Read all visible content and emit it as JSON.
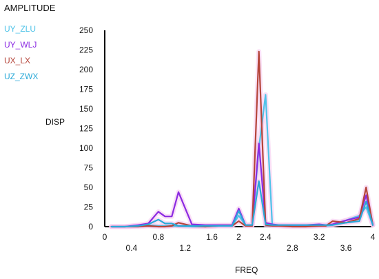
{
  "chart_data": {
    "type": "line",
    "title": "AMPLITUDE",
    "ylabel": "DISP",
    "xlabel": "FREQ",
    "xlim": [
      0,
      4
    ],
    "ylim": [
      0,
      250
    ],
    "x_ticks_lower": [
      "0",
      "0.8",
      "1.6",
      "2",
      "2.4",
      "3.2",
      "4"
    ],
    "x_ticks_upper": [
      "0.4",
      "1.2",
      "2.8",
      "3.6"
    ],
    "x_ticks_lower_values": [
      0,
      0.8,
      1.6,
      2.0,
      2.4,
      3.2,
      4.0
    ],
    "x_ticks_upper_values": [
      0.4,
      1.2,
      2.8,
      3.6
    ],
    "y_ticks": [
      "0",
      "25",
      "50",
      "75",
      "100",
      "125",
      "150",
      "175",
      "200",
      "225",
      "250"
    ],
    "y_tick_values": [
      0,
      25,
      50,
      75,
      100,
      125,
      150,
      175,
      200,
      225,
      250
    ],
    "grid": false,
    "legend_position": "top-left",
    "series": [
      {
        "name": "UY_ZLU",
        "color": "#4fc3e8",
        "x": [
          0.1,
          0.3,
          0.5,
          0.65,
          0.8,
          0.9,
          1.0,
          1.1,
          1.3,
          1.5,
          1.7,
          1.9,
          2.0,
          2.1,
          2.2,
          2.3,
          2.4,
          2.5,
          2.6,
          2.8,
          3.0,
          3.2,
          3.3,
          3.4,
          3.6,
          3.8,
          3.9,
          4.0
        ],
        "y": [
          0,
          0,
          1,
          2,
          1,
          1,
          1,
          1,
          0,
          0,
          1,
          1,
          14,
          2,
          2,
          100,
          168,
          2,
          1,
          1,
          1,
          1,
          1,
          2,
          8,
          14,
          25,
          2
        ]
      },
      {
        "name": "UY_WLJ",
        "color": "#8b2be2",
        "x": [
          0.1,
          0.3,
          0.5,
          0.65,
          0.8,
          0.9,
          1.0,
          1.1,
          1.3,
          1.5,
          1.7,
          1.9,
          2.0,
          2.1,
          2.2,
          2.3,
          2.4,
          2.5,
          2.6,
          2.8,
          3.0,
          3.2,
          3.3,
          3.4,
          3.6,
          3.8,
          3.9,
          4.0
        ],
        "y": [
          0,
          0,
          2,
          4,
          19,
          13,
          13,
          44,
          3,
          2,
          2,
          2,
          23,
          2,
          2,
          106,
          5,
          3,
          2,
          2,
          2,
          3,
          2,
          3,
          8,
          12,
          40,
          3
        ]
      },
      {
        "name": "UX_LX",
        "color": "#b5453a",
        "x": [
          0.1,
          0.3,
          0.5,
          0.65,
          0.8,
          0.9,
          1.0,
          1.1,
          1.3,
          1.5,
          1.7,
          1.9,
          2.0,
          2.1,
          2.2,
          2.3,
          2.4,
          2.5,
          2.6,
          2.8,
          3.0,
          3.2,
          3.3,
          3.4,
          3.6,
          3.8,
          3.9,
          4.0
        ],
        "y": [
          0,
          0,
          0,
          1,
          0,
          0,
          1,
          5,
          1,
          0,
          1,
          1,
          7,
          1,
          1,
          223,
          2,
          1,
          1,
          0,
          0,
          1,
          1,
          7,
          5,
          10,
          50,
          2
        ]
      },
      {
        "name": "UZ_ZWX",
        "color": "#29a9d8",
        "x": [
          0.1,
          0.3,
          0.5,
          0.65,
          0.8,
          0.9,
          1.0,
          1.1,
          1.3,
          1.5,
          1.7,
          1.9,
          2.0,
          2.1,
          2.2,
          2.3,
          2.4,
          2.5,
          2.6,
          2.8,
          3.0,
          3.2,
          3.3,
          3.4,
          3.6,
          3.8,
          3.9,
          4.0
        ],
        "y": [
          0,
          0,
          1,
          3,
          9,
          4,
          4,
          1,
          1,
          1,
          1,
          1,
          20,
          2,
          2,
          58,
          3,
          2,
          2,
          2,
          2,
          2,
          2,
          2,
          5,
          7,
          32,
          2
        ]
      }
    ]
  },
  "colors": {
    "axis": "#000000",
    "glow": "#f6c6ef"
  }
}
